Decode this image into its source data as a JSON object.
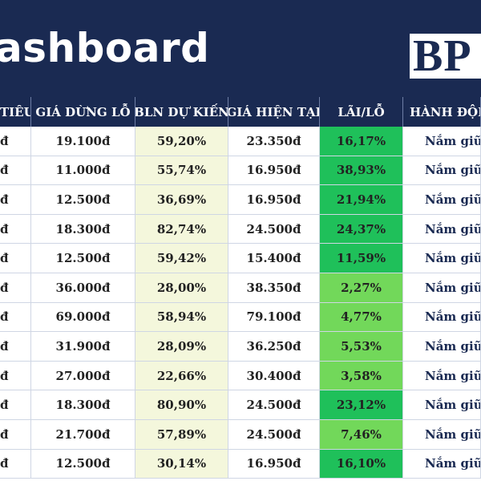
{
  "header": {
    "title": "ashboard",
    "logo": "BP"
  },
  "columns": [
    "TIÊU",
    "GIÁ DỪNG LỖ",
    "BLN DỰ KIẾN",
    "GIÁ HIỆN TẠI",
    "LÃI/LỖ",
    "HÀNH ĐỘN"
  ],
  "colors": {
    "navy": "#1a2a52",
    "green_strong": "#1fc05a",
    "green_light": "#72d85a",
    "projected_bg": "#f4f7dc"
  },
  "rows": [
    {
      "target": "đ",
      "stop_loss": "19.100đ",
      "projected": "59,20%",
      "current": "23.350đ",
      "pnl": "16,17%",
      "pnl_level": "strong",
      "action": "Nắm giữ"
    },
    {
      "target": "đ",
      "stop_loss": "11.000đ",
      "projected": "55,74%",
      "current": "16.950đ",
      "pnl": "38,93%",
      "pnl_level": "strong",
      "action": "Nắm giữ"
    },
    {
      "target": "đ",
      "stop_loss": "12.500đ",
      "projected": "36,69%",
      "current": "16.950đ",
      "pnl": "21,94%",
      "pnl_level": "strong",
      "action": "Nắm giữ"
    },
    {
      "target": "đ",
      "stop_loss": "18.300đ",
      "projected": "82,74%",
      "current": "24.500đ",
      "pnl": "24,37%",
      "pnl_level": "strong",
      "action": "Nắm giữ"
    },
    {
      "target": "đ",
      "stop_loss": "12.500đ",
      "projected": "59,42%",
      "current": "15.400đ",
      "pnl": "11,59%",
      "pnl_level": "strong",
      "action": "Nắm giữ"
    },
    {
      "target": "đ",
      "stop_loss": "36.000đ",
      "projected": "28,00%",
      "current": "38.350đ",
      "pnl": "2,27%",
      "pnl_level": "light",
      "action": "Nắm giữ"
    },
    {
      "target": "đ",
      "stop_loss": "69.000đ",
      "projected": "58,94%",
      "current": "79.100đ",
      "pnl": "4,77%",
      "pnl_level": "light",
      "action": "Nắm giữ"
    },
    {
      "target": "đ",
      "stop_loss": "31.900đ",
      "projected": "28,09%",
      "current": "36.250đ",
      "pnl": "5,53%",
      "pnl_level": "light",
      "action": "Nắm giữ"
    },
    {
      "target": "đ",
      "stop_loss": "27.000đ",
      "projected": "22,66%",
      "current": "30.400đ",
      "pnl": "3,58%",
      "pnl_level": "light",
      "action": "Nắm giữ"
    },
    {
      "target": "đ",
      "stop_loss": "18.300đ",
      "projected": "80,90%",
      "current": "24.500đ",
      "pnl": "23,12%",
      "pnl_level": "strong",
      "action": "Nắm giữ"
    },
    {
      "target": "đ",
      "stop_loss": "21.700đ",
      "projected": "57,89%",
      "current": "24.500đ",
      "pnl": "7,46%",
      "pnl_level": "light",
      "action": "Nắm giữ"
    },
    {
      "target": "đ",
      "stop_loss": "12.500đ",
      "projected": "30,14%",
      "current": "16.950đ",
      "pnl": "16,10%",
      "pnl_level": "strong",
      "action": "Nắm giữ"
    }
  ]
}
